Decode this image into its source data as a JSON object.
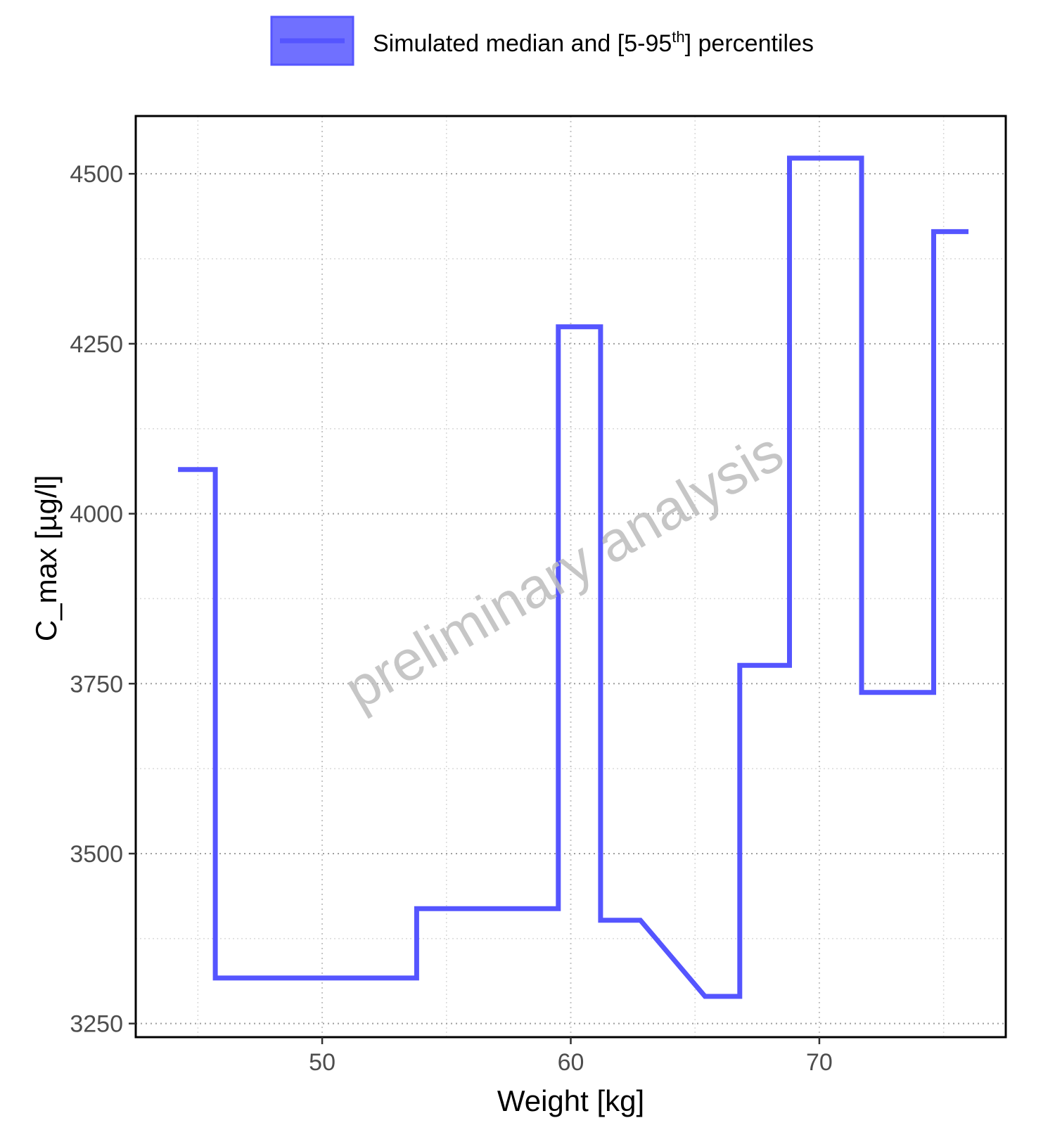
{
  "chart_data": {
    "type": "line",
    "step": true,
    "title": "",
    "xlabel": "Weight [kg]",
    "ylabel": "C_max [µg/l]",
    "xlim": [
      42.5,
      77.5
    ],
    "ylim": [
      3230,
      4585
    ],
    "x_ticks": [
      50,
      60,
      70
    ],
    "y_ticks": [
      3250,
      3500,
      3750,
      4000,
      4250,
      4500
    ],
    "grid": true,
    "legend": {
      "position": "top",
      "label_prefix": "Simulated median and [5-95",
      "label_sup": "th",
      "label_suffix": "] percentiles"
    },
    "watermark": "preliminary analysis",
    "series": [
      {
        "color": "#5555ff",
        "points": [
          [
            44.2,
            4065
          ],
          [
            45.7,
            4065
          ],
          [
            45.7,
            3317
          ],
          [
            53.8,
            3317
          ],
          [
            53.8,
            3419
          ],
          [
            59.5,
            3419
          ],
          [
            59.5,
            4275
          ],
          [
            61.2,
            4275
          ],
          [
            61.2,
            3402
          ],
          [
            62.8,
            3402
          ],
          [
            65.4,
            3290
          ],
          [
            66.8,
            3290
          ],
          [
            66.8,
            3777
          ],
          [
            68.8,
            3777
          ],
          [
            68.8,
            4523
          ],
          [
            71.7,
            4523
          ],
          [
            71.7,
            3737
          ],
          [
            74.6,
            3737
          ],
          [
            74.6,
            4415
          ],
          [
            76.0,
            4415
          ]
        ]
      }
    ]
  }
}
